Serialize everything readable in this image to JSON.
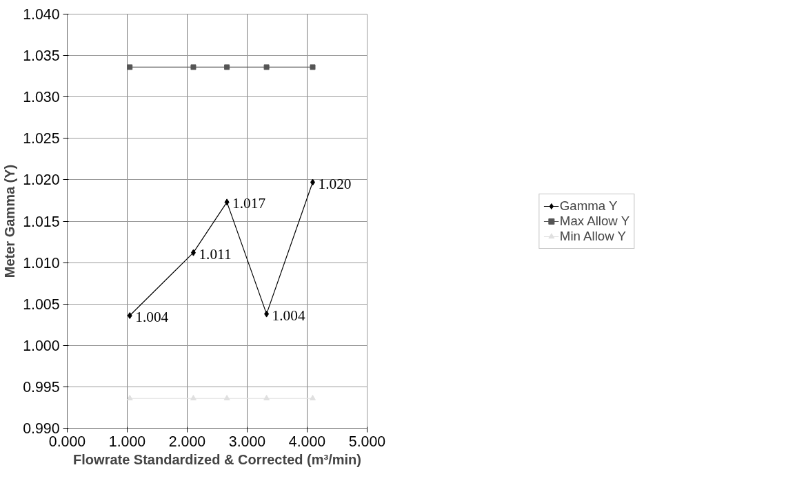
{
  "chart_data": {
    "type": "line",
    "xlabel": "Flowrate Standardized & Corrected (m³/min)",
    "ylabel": "Meter Gamma (Y)",
    "x": [
      1.043,
      2.103,
      2.662,
      3.323,
      4.092
    ],
    "series": [
      {
        "name": "Gamma Y",
        "color": "#000000",
        "marker": "diamond",
        "values": [
          1.0036,
          1.0112,
          1.0173,
          1.0038,
          1.0197
        ],
        "value_labels": [
          "1.004",
          "1.011",
          "1.017",
          "1.004",
          "1.020"
        ]
      },
      {
        "name": "Max Allow Y",
        "color": "#555555",
        "marker": "square",
        "values": [
          1.0336,
          1.0336,
          1.0336,
          1.0336,
          1.0336
        ]
      },
      {
        "name": "Min Allow Y",
        "color": "#e0e0e0",
        "marker": "triangle",
        "values": [
          0.9936,
          0.9936,
          0.9936,
          0.9936,
          0.9936
        ]
      }
    ],
    "xlim": [
      0.0,
      5.0
    ],
    "xticks": [
      {
        "value": 0,
        "label": "0.000"
      },
      {
        "value": 1,
        "label": "1.000"
      },
      {
        "value": 2,
        "label": "2.000"
      },
      {
        "value": 3,
        "label": "3.000"
      },
      {
        "value": 4,
        "label": "4.000"
      },
      {
        "value": 5,
        "label": "5.000"
      }
    ],
    "ylim": [
      0.99,
      1.04
    ],
    "yticks": [
      {
        "value": 0.99,
        "label": "0.990"
      },
      {
        "value": 0.995,
        "label": "0.995"
      },
      {
        "value": 1.0,
        "label": "1.000"
      },
      {
        "value": 1.005,
        "label": "1.005"
      },
      {
        "value": 1.01,
        "label": "1.010"
      },
      {
        "value": 1.015,
        "label": "1.015"
      },
      {
        "value": 1.02,
        "label": "1.020"
      },
      {
        "value": 1.025,
        "label": "1.025"
      },
      {
        "value": 1.03,
        "label": "1.030"
      },
      {
        "value": 1.035,
        "label": "1.035"
      },
      {
        "value": 1.04,
        "label": "1.040"
      }
    ],
    "grid": true,
    "legend": "right",
    "line_style": "solid"
  }
}
